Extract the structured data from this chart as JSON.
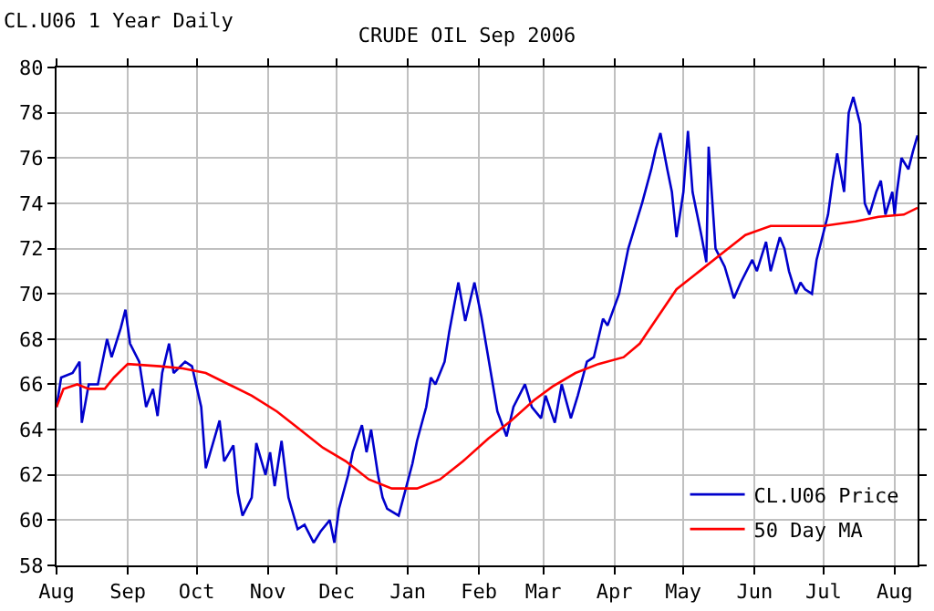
{
  "chart_data": {
    "type": "line",
    "title": "CRUDE OIL Sep 2006",
    "subtitle": "CL.U06 1 Year Daily",
    "xlim": [
      "2005-08-01",
      "2006-08-11"
    ],
    "ylim": [
      58,
      80
    ],
    "yticks": [
      58,
      60,
      62,
      64,
      66,
      68,
      70,
      72,
      74,
      76,
      78,
      80
    ],
    "xticks": [
      {
        "value": "2005-08-01",
        "label": "Aug"
      },
      {
        "value": "2005-09-01",
        "label": "Sep"
      },
      {
        "value": "2005-10-01",
        "label": "Oct"
      },
      {
        "value": "2005-11-01",
        "label": "Nov"
      },
      {
        "value": "2005-12-01",
        "label": "Dec"
      },
      {
        "value": "2006-01-01",
        "label": "Jan"
      },
      {
        "value": "2006-02-01",
        "label": "Feb"
      },
      {
        "value": "2006-03-01",
        "label": "Mar"
      },
      {
        "value": "2006-04-01",
        "label": "Apr"
      },
      {
        "value": "2006-05-01",
        "label": "May"
      },
      {
        "value": "2006-06-01",
        "label": "Jun"
      },
      {
        "value": "2006-07-01",
        "label": "Jul"
      },
      {
        "value": "2006-08-01",
        "label": "Aug"
      }
    ],
    "grid": true,
    "legend": "bottom right",
    "marker": "none",
    "line_style": "solid",
    "series": [
      {
        "name": "CL.U06 Price",
        "color": "#0000cc",
        "x": [
          "2005-08-01",
          "2005-08-03",
          "2005-08-08",
          "2005-08-11",
          "2005-08-12",
          "2005-08-15",
          "2005-08-19",
          "2005-08-23",
          "2005-08-25",
          "2005-08-29",
          "2005-08-31",
          "2005-09-02",
          "2005-09-06",
          "2005-09-09",
          "2005-09-12",
          "2005-09-14",
          "2005-09-16",
          "2005-09-19",
          "2005-09-21",
          "2005-09-26",
          "2005-09-29",
          "2005-10-03",
          "2005-10-05",
          "2005-10-07",
          "2005-10-11",
          "2005-10-13",
          "2005-10-17",
          "2005-10-19",
          "2005-10-21",
          "2005-10-25",
          "2005-10-27",
          "2005-10-31",
          "2005-11-02",
          "2005-11-04",
          "2005-11-07",
          "2005-11-10",
          "2005-11-14",
          "2005-11-17",
          "2005-11-21",
          "2005-11-24",
          "2005-11-28",
          "2005-11-30",
          "2005-12-02",
          "2005-12-06",
          "2005-12-08",
          "2005-12-12",
          "2005-12-14",
          "2005-12-16",
          "2005-12-19",
          "2005-12-21",
          "2005-12-23",
          "2005-12-28",
          "2006-01-03",
          "2006-01-05",
          "2006-01-09",
          "2006-01-11",
          "2006-01-13",
          "2006-01-17",
          "2006-01-19",
          "2006-01-23",
          "2006-01-26",
          "2006-01-30",
          "2006-02-02",
          "2006-02-06",
          "2006-02-09",
          "2006-02-13",
          "2006-02-16",
          "2006-02-21",
          "2006-02-24",
          "2006-02-28",
          "2006-03-02",
          "2006-03-06",
          "2006-03-09",
          "2006-03-13",
          "2006-03-16",
          "2006-03-20",
          "2006-03-23",
          "2006-03-27",
          "2006-03-29",
          "2006-04-03",
          "2006-04-05",
          "2006-04-07",
          "2006-04-10",
          "2006-04-13",
          "2006-04-17",
          "2006-04-19",
          "2006-04-21",
          "2006-04-24",
          "2006-04-26",
          "2006-04-28",
          "2006-05-01",
          "2006-05-03",
          "2006-05-05",
          "2006-05-09",
          "2006-05-11",
          "2006-05-12",
          "2006-05-15",
          "2006-05-19",
          "2006-05-23",
          "2006-05-26",
          "2006-05-31",
          "2006-06-02",
          "2006-06-06",
          "2006-06-08",
          "2006-06-12",
          "2006-06-14",
          "2006-06-16",
          "2006-06-19",
          "2006-06-21",
          "2006-06-23",
          "2006-06-26",
          "2006-06-28",
          "2006-07-03",
          "2006-07-05",
          "2006-07-07",
          "2006-07-10",
          "2006-07-12",
          "2006-07-14",
          "2006-07-17",
          "2006-07-19",
          "2006-07-21",
          "2006-07-24",
          "2006-07-26",
          "2006-07-28",
          "2006-07-31",
          "2006-08-01",
          "2006-08-02",
          "2006-08-04",
          "2006-08-07",
          "2006-08-09",
          "2006-08-11"
        ],
        "values": [
          65.0,
          66.3,
          66.5,
          67.0,
          64.3,
          66.0,
          66.0,
          68.0,
          67.2,
          68.5,
          69.3,
          67.8,
          67.0,
          65.0,
          65.8,
          64.6,
          66.5,
          67.8,
          66.5,
          67.0,
          66.8,
          65.0,
          62.3,
          63.0,
          64.4,
          62.6,
          63.3,
          61.2,
          60.2,
          61.0,
          63.4,
          62.0,
          63.0,
          61.5,
          63.5,
          61.0,
          59.6,
          59.8,
          59.0,
          59.5,
          60.0,
          59.0,
          60.5,
          62.0,
          63.0,
          64.2,
          63.0,
          64.0,
          62.0,
          61.0,
          60.5,
          60.2,
          62.5,
          63.5,
          65.0,
          66.3,
          66.0,
          67.0,
          68.3,
          70.5,
          68.8,
          70.5,
          69.0,
          66.6,
          64.8,
          63.7,
          65.0,
          66.0,
          65.0,
          64.5,
          65.5,
          64.3,
          66.0,
          64.5,
          65.5,
          67.0,
          67.2,
          68.9,
          68.6,
          70.0,
          71.0,
          72.0,
          73.0,
          74.0,
          75.5,
          76.4,
          77.1,
          75.5,
          74.5,
          72.5,
          74.5,
          77.2,
          74.5,
          72.5,
          71.4,
          76.5,
          72.0,
          71.2,
          69.8,
          70.5,
          71.5,
          71.0,
          72.3,
          71.0,
          72.5,
          72.0,
          71.0,
          70.0,
          70.5,
          70.2,
          70.0,
          71.5,
          73.5,
          75.0,
          76.2,
          74.5,
          78.0,
          78.7,
          77.5,
          74.0,
          73.5,
          74.5,
          75.0,
          73.5,
          74.5,
          73.5,
          74.5,
          76.0,
          75.5,
          76.3,
          77.0
        ]
      },
      {
        "name": "50 Day MA",
        "color": "#ff0000",
        "x": [
          "2005-08-01",
          "2005-08-04",
          "2005-08-10",
          "2005-08-15",
          "2005-08-22",
          "2005-08-26",
          "2005-09-01",
          "2005-09-15",
          "2005-09-25",
          "2005-10-05",
          "2005-10-15",
          "2005-10-25",
          "2005-11-05",
          "2005-11-15",
          "2005-11-25",
          "2005-12-05",
          "2005-12-15",
          "2005-12-25",
          "2006-01-05",
          "2006-01-15",
          "2006-01-25",
          "2006-02-05",
          "2006-02-15",
          "2006-02-25",
          "2006-03-05",
          "2006-03-15",
          "2006-03-25",
          "2006-04-05",
          "2006-04-12",
          "2006-04-20",
          "2006-04-28",
          "2006-05-08",
          "2006-05-18",
          "2006-05-28",
          "2006-06-08",
          "2006-06-20",
          "2006-07-01",
          "2006-07-15",
          "2006-07-25",
          "2006-08-05",
          "2006-08-11"
        ],
        "values": [
          65.0,
          65.8,
          66.0,
          65.8,
          65.8,
          66.3,
          66.9,
          66.8,
          66.7,
          66.5,
          66.0,
          65.5,
          64.8,
          64.0,
          63.2,
          62.6,
          61.8,
          61.4,
          61.4,
          61.8,
          62.6,
          63.6,
          64.4,
          65.3,
          65.9,
          66.5,
          66.9,
          67.2,
          67.8,
          69.0,
          70.2,
          71.0,
          71.8,
          72.6,
          73.0,
          73.0,
          73.0,
          73.2,
          73.4,
          73.5,
          73.8
        ]
      }
    ]
  }
}
